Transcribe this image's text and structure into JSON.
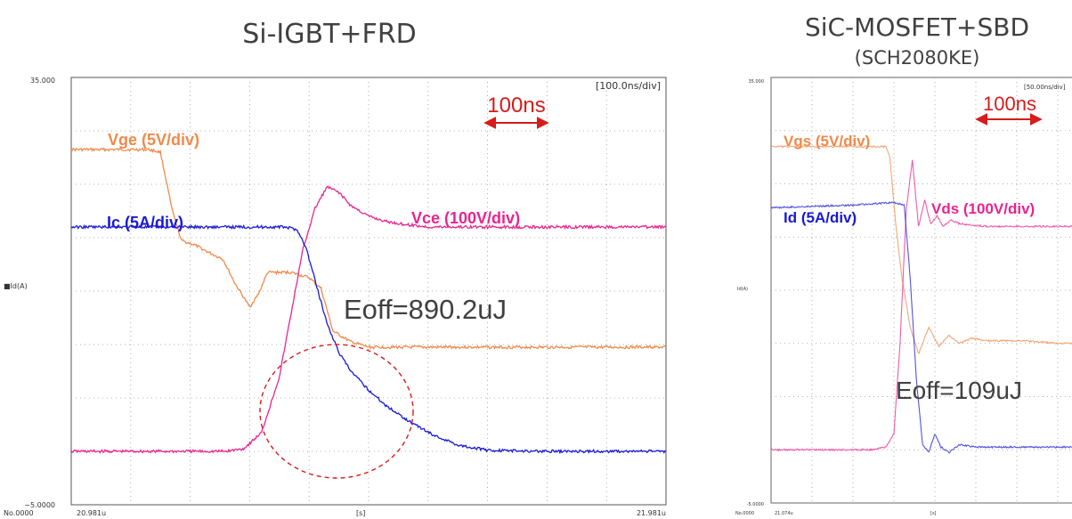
{
  "colors": {
    "gate": "#f08a4b",
    "voltage": "#e8258f",
    "current": "#1a1ad6",
    "annotation": "#d81b1b",
    "grid": "#9a9a9a",
    "title_text": "#404040"
  },
  "chart_data": [
    {
      "type": "line",
      "title": "Si-IGBT+FRD",
      "y_axis_top": "35.000",
      "y_axis_bottom": "−5.0000",
      "y_axis_channel": "■Id(A)",
      "x_axis_start": "20.981u",
      "x_axis_end": "21.981u",
      "x_axis_unit": "[s]",
      "sample_label": "No.0000",
      "timebase": "[100.0ns/div]",
      "scale_marker": "100ns",
      "eoff": "Eoff=890.2uJ",
      "xlim": [
        0,
        10
      ],
      "ylim": [
        0,
        8
      ],
      "grid": true,
      "series": [
        {
          "name": "Vge (5V/div)",
          "color_key": "gate",
          "x": [
            0,
            1.3,
            1.5,
            1.7,
            1.85,
            2.1,
            2.35,
            2.55,
            2.75,
            3.0,
            3.15,
            3.3,
            3.7,
            4.0,
            4.2,
            4.4,
            4.7,
            5.0,
            6.0,
            8.0,
            10
          ],
          "y": [
            6.65,
            6.65,
            6.6,
            5.5,
            4.95,
            4.85,
            4.7,
            4.6,
            4.15,
            3.7,
            3.95,
            4.35,
            4.35,
            4.25,
            4.05,
            3.25,
            3.05,
            2.95,
            2.95,
            2.95,
            2.95
          ]
        },
        {
          "name": "Vce (100V/div)",
          "color_key": "voltage",
          "x": [
            0,
            2.4,
            2.6,
            2.9,
            3.2,
            3.5,
            3.7,
            3.9,
            4.1,
            4.3,
            4.5,
            4.7,
            5.0,
            5.3,
            5.6,
            6.0,
            7.0,
            8.0,
            10
          ],
          "y": [
            1.0,
            1.0,
            1.0,
            1.05,
            1.35,
            2.4,
            3.6,
            4.8,
            5.55,
            5.95,
            5.85,
            5.6,
            5.4,
            5.3,
            5.25,
            5.2,
            5.2,
            5.2,
            5.2
          ]
        },
        {
          "name": "Ic (5A/div)",
          "color_key": "current",
          "x": [
            0,
            2.0,
            3.0,
            3.6,
            3.8,
            3.95,
            4.1,
            4.3,
            4.5,
            4.7,
            5.0,
            5.3,
            5.7,
            6.1,
            6.5,
            7.0,
            8.0,
            10
          ],
          "y": [
            5.2,
            5.2,
            5.2,
            5.2,
            5.15,
            4.8,
            4.2,
            3.4,
            2.85,
            2.5,
            2.15,
            1.85,
            1.55,
            1.3,
            1.12,
            1.02,
            1.0,
            1.0
          ]
        }
      ]
    },
    {
      "type": "line",
      "title": "SiC-MOSFET+SBD",
      "subtitle": "(SCH2080KE)",
      "y_axis_top": "35.000",
      "y_axis_bottom": "-5.0000",
      "y_axis_channel": "Id(A)",
      "x_axis_start": "21.074u",
      "x_axis_unit": "[s]",
      "sample_label": "No.0000",
      "timebase": "[50.00ns/div]",
      "scale_marker": "100ns",
      "eoff": "Eoff=109uJ",
      "xlim": [
        0,
        10
      ],
      "ylim": [
        0,
        8
      ],
      "grid": true,
      "series": [
        {
          "name": "Vgs (5V/div)",
          "color_key": "gate",
          "x": [
            0,
            2.8,
            2.9,
            3.05,
            3.2,
            3.4,
            3.6,
            3.85,
            4.1,
            4.35,
            4.6,
            4.9,
            5.2,
            5.6,
            6.2,
            7.0,
            8.0,
            10
          ],
          "y": [
            6.7,
            6.7,
            6.5,
            5.2,
            4.2,
            3.3,
            2.8,
            3.3,
            2.95,
            3.15,
            3.0,
            3.1,
            3.05,
            3.05,
            3.05,
            3.0,
            3.0,
            3.0
          ]
        },
        {
          "name": "Vds (100V/div)",
          "color_key": "voltage",
          "x": [
            0,
            2.5,
            2.8,
            3.0,
            3.15,
            3.3,
            3.45,
            3.6,
            3.75,
            3.9,
            4.05,
            4.2,
            4.4,
            4.6,
            4.9,
            5.3,
            6.0,
            7.0,
            8.0,
            10
          ],
          "y": [
            1.0,
            1.0,
            1.05,
            1.3,
            3.0,
            5.5,
            6.45,
            5.2,
            5.7,
            5.25,
            5.4,
            5.2,
            5.32,
            5.25,
            5.22,
            5.2,
            5.2,
            5.2,
            5.2,
            5.2
          ]
        },
        {
          "name": "Id (5A/div)",
          "color_key": "current",
          "x": [
            0,
            2.0,
            3.0,
            3.25,
            3.4,
            3.55,
            3.7,
            3.85,
            4.0,
            4.15,
            4.35,
            4.6,
            5.0,
            5.5,
            6.0,
            7.0,
            8.0,
            10
          ],
          "y": [
            5.55,
            5.6,
            5.65,
            5.6,
            4.2,
            2.3,
            1.1,
            0.95,
            1.3,
            1.05,
            0.95,
            1.1,
            1.05,
            1.05,
            1.05,
            1.05,
            1.05,
            1.05
          ]
        }
      ]
    }
  ]
}
